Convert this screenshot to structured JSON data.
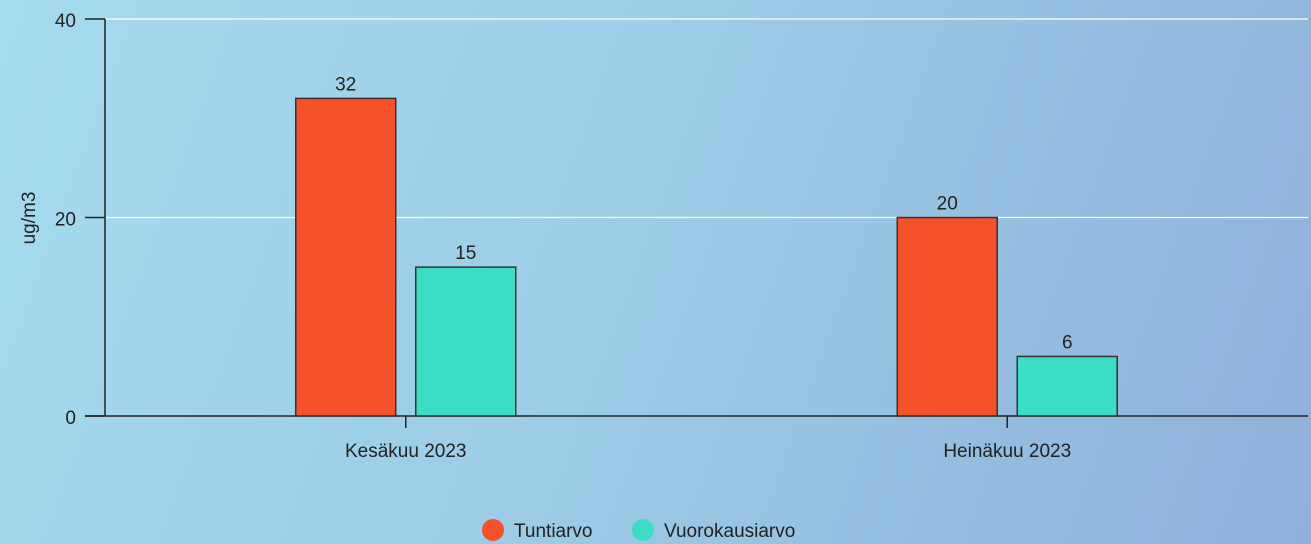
{
  "chart_data": {
    "type": "bar",
    "categories": [
      "Kesäkuu 2023",
      "Heinäkuu 2023"
    ],
    "y_label": "ug/m3",
    "series": [
      {
        "name": "Tuntiarvo",
        "color": "#f5512b",
        "values": [
          32,
          20
        ]
      },
      {
        "name": "Vuorokausiarvo",
        "color": "#3ddcc4",
        "values": [
          15,
          6
        ]
      }
    ],
    "ylim": [
      0,
      40
    ],
    "yticks": [
      0,
      20,
      40
    ],
    "grid": true,
    "legend": "bottom"
  }
}
